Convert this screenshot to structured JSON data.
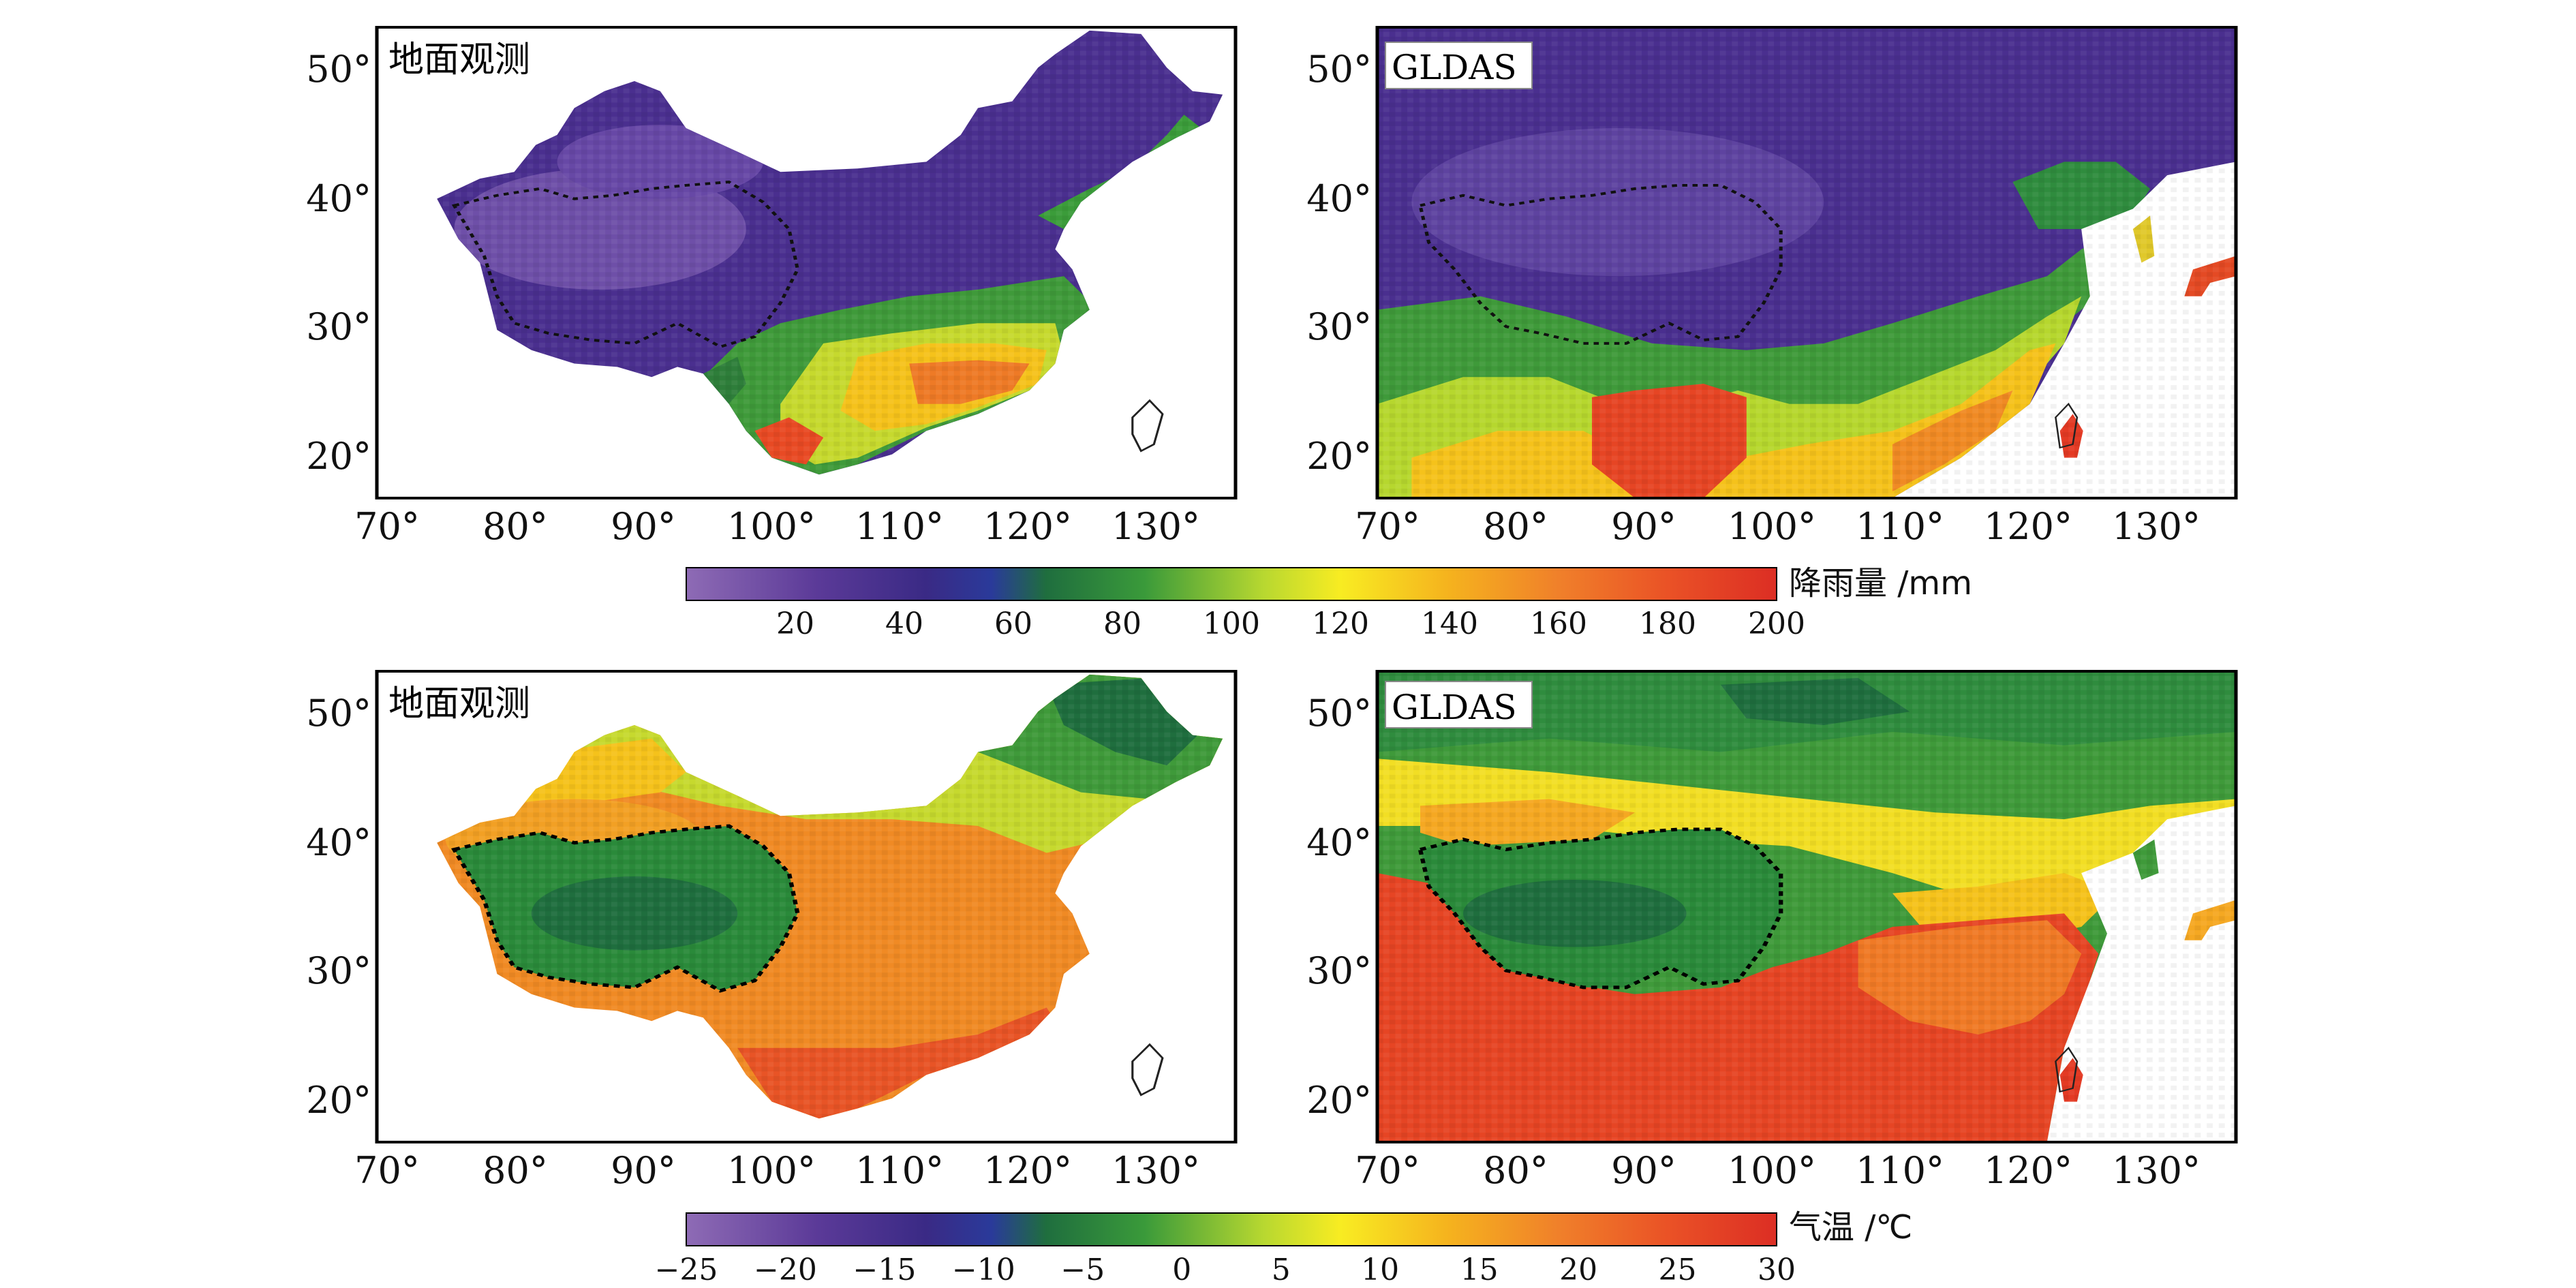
{
  "panels": [
    {
      "id": "precip-obs",
      "title": "地面观测",
      "variable": "precip",
      "source": "obs"
    },
    {
      "id": "precip-gldas",
      "title": "GLDAS",
      "variable": "precip",
      "source": "gldas"
    },
    {
      "id": "temp-obs",
      "title": "地面观测",
      "variable": "temp",
      "source": "obs"
    },
    {
      "id": "temp-gldas",
      "title": "GLDAS",
      "variable": "temp",
      "source": "gldas"
    }
  ],
  "axes": {
    "lon_ticks": [
      "70°",
      "80°",
      "90°",
      "100°",
      "110°",
      "120°",
      "130°"
    ],
    "lat_ticks": [
      "50°",
      "40°",
      "30°",
      "20°"
    ]
  },
  "colorbars": [
    {
      "id": "precip",
      "unit": "降雨量 /mm",
      "ticks": [
        "20",
        "40",
        "60",
        "80",
        "100",
        "120",
        "140",
        "160",
        "180",
        "200"
      ]
    },
    {
      "id": "temp",
      "unit": "气温 /℃",
      "ticks": [
        "−25",
        "−20",
        "−15",
        "−10",
        "−5",
        "0",
        "5",
        "10",
        "15",
        "20",
        "25",
        "30"
      ]
    }
  ],
  "colors": {
    "ramp": [
      "#8e6bb5",
      "#5b3a98",
      "#3a2a85",
      "#2a3a9a",
      "#1f6e3e",
      "#2f8c3e",
      "#7ab83a",
      "#d8de2a",
      "#f5c21b",
      "#f28e24",
      "#ea5a24",
      "#dc3426"
    ]
  }
}
